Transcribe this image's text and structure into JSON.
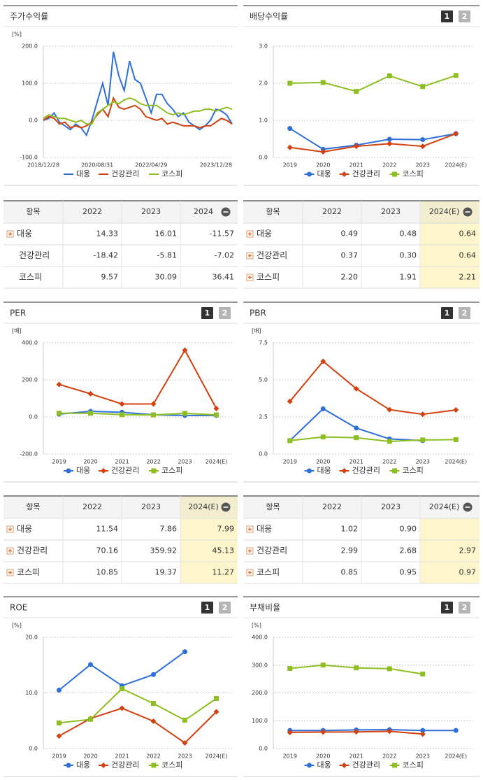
{
  "chart_data": [
    {
      "type": "line",
      "title": "주가수익률",
      "unit": "[%]",
      "categories": [
        "2018/12/28",
        null,
        null,
        null,
        null,
        null,
        null,
        null,
        null,
        null,
        "2020/08/31",
        null,
        null,
        null,
        null,
        null,
        null,
        null,
        null,
        null,
        "2022/04/29",
        null,
        null,
        null,
        null,
        null,
        null,
        null,
        null,
        null,
        null,
        null,
        "2023/12/28",
        null,
        null,
        null
      ],
      "series": [
        {
          "name": "대웅",
          "color": "#2f6fd8",
          "values": [
            0,
            5,
            20,
            -5,
            -15,
            -25,
            -10,
            -20,
            -40,
            0,
            50,
            100,
            40,
            185,
            120,
            80,
            160,
            110,
            100,
            60,
            20,
            70,
            70,
            45,
            30,
            10,
            20,
            -5,
            -15,
            -25,
            -15,
            0,
            30,
            25,
            15,
            -10
          ]
        },
        {
          "name": "건강관리",
          "color": "#d4400e",
          "values": [
            0,
            10,
            5,
            -10,
            -5,
            -20,
            -15,
            -20,
            -15,
            -5,
            15,
            30,
            10,
            60,
            35,
            30,
            35,
            40,
            30,
            10,
            5,
            0,
            5,
            -10,
            -5,
            -10,
            -15,
            -15,
            -15,
            -20,
            -15,
            -15,
            -5,
            5,
            0,
            -10
          ]
        },
        {
          "name": "코스피",
          "color": "#8dbf22",
          "values": [
            5,
            15,
            10,
            5,
            5,
            0,
            -5,
            0,
            -10,
            -10,
            20,
            30,
            40,
            50,
            45,
            55,
            60,
            55,
            45,
            40,
            40,
            40,
            30,
            20,
            15,
            20,
            15,
            20,
            25,
            25,
            30,
            30,
            25,
            30,
            35,
            30
          ]
        }
      ],
      "ylim": [
        -100,
        200
      ],
      "yticks": [
        {
          "value": -100,
          "label": "-100.0"
        },
        {
          "value": 0,
          "label": "0.0"
        },
        {
          "value": 100,
          "label": "100.0"
        },
        {
          "value": 200,
          "label": "200.0"
        }
      ],
      "grid": true
    },
    {
      "type": "line",
      "title": "배당수익률",
      "buttons": [
        "1",
        "2"
      ],
      "categories": [
        "2019",
        "2020",
        "2021",
        "2022",
        "2023",
        "2024(E)"
      ],
      "series": [
        {
          "name": "대웅",
          "color": "#2f6fd8",
          "marker": "circle",
          "values": [
            0.78,
            0.22,
            0.33,
            0.49,
            0.48,
            0.64
          ]
        },
        {
          "name": "건강관리",
          "color": "#d4400e",
          "marker": "diamond",
          "values": [
            0.27,
            0.15,
            0.3,
            0.37,
            0.3,
            0.64
          ]
        },
        {
          "name": "코스피",
          "color": "#8dbf22",
          "marker": "square",
          "values": [
            2.0,
            2.02,
            1.78,
            2.2,
            1.91,
            2.21
          ]
        }
      ],
      "ylim": [
        0,
        3
      ],
      "yticks": [
        {
          "value": 0,
          "label": "0.0"
        },
        {
          "value": 1,
          "label": "1.0"
        },
        {
          "value": 2,
          "label": "2.0"
        },
        {
          "value": 3,
          "label": "3.0"
        }
      ],
      "grid": true
    },
    {
      "type": "line",
      "title": "PER",
      "unit": "[배]",
      "buttons": [
        "1",
        "2"
      ],
      "categories": [
        "2019",
        "2020",
        "2021",
        "2022",
        "2023",
        "2024(E)"
      ],
      "series": [
        {
          "name": "대웅",
          "color": "#2f6fd8",
          "marker": "circle",
          "values": [
            15,
            30,
            25,
            11.54,
            7.86,
            7.99
          ]
        },
        {
          "name": "건강관리",
          "color": "#d4400e",
          "marker": "diamond",
          "values": [
            175,
            125,
            70,
            70.16,
            359.92,
            45.13
          ]
        },
        {
          "name": "코스피",
          "color": "#8dbf22",
          "marker": "square",
          "values": [
            20,
            20,
            12,
            10.85,
            19.37,
            11.27
          ]
        }
      ],
      "ylim": [
        -200,
        400
      ],
      "yticks": [
        {
          "value": -200,
          "label": "-200.0"
        },
        {
          "value": 0,
          "label": "0.0"
        },
        {
          "value": 200,
          "label": "200.0"
        },
        {
          "value": 400,
          "label": "400.0"
        }
      ],
      "grid": true
    },
    {
      "type": "line",
      "title": "PBR",
      "unit": "[배]",
      "buttons": [
        "1",
        "2"
      ],
      "categories": [
        "2019",
        "2020",
        "2021",
        "2022",
        "2023",
        "2024(E)"
      ],
      "series": [
        {
          "name": "대웅",
          "color": "#2f6fd8",
          "marker": "circle",
          "values": [
            0.9,
            3.05,
            1.75,
            1.02,
            0.9,
            null
          ]
        },
        {
          "name": "건강관리",
          "color": "#d4400e",
          "marker": "diamond",
          "values": [
            3.55,
            6.25,
            4.4,
            2.99,
            2.68,
            2.97
          ]
        },
        {
          "name": "코스피",
          "color": "#8dbf22",
          "marker": "square",
          "values": [
            0.9,
            1.15,
            1.1,
            0.85,
            0.95,
            0.97
          ]
        }
      ],
      "ylim": [
        0,
        7.5
      ],
      "yticks": [
        {
          "value": 0,
          "label": "0.0"
        },
        2.5,
        {
          "value": 5,
          "label": "5.0"
        },
        7.5
      ],
      "grid": true
    },
    {
      "type": "line",
      "title": "ROE",
      "unit": "[%]",
      "buttons": [
        "1",
        "2"
      ],
      "categories": [
        "2019",
        "2020",
        "2021",
        "2022",
        "2023",
        "2024(E)"
      ],
      "series": [
        {
          "name": "대웅",
          "color": "#2f6fd8",
          "marker": "circle",
          "values": [
            10.5,
            15.1,
            11.3,
            13.3,
            17.4,
            null
          ]
        },
        {
          "name": "건강관리",
          "color": "#d4400e",
          "marker": "diamond",
          "values": [
            2.25,
            5.4,
            7.25,
            4.9,
            1.0,
            6.6
          ]
        },
        {
          "name": "코스피",
          "color": "#8dbf22",
          "marker": "square",
          "values": [
            4.6,
            5.25,
            10.75,
            8.1,
            5.1,
            9.0
          ]
        }
      ],
      "ylim": [
        0,
        20
      ],
      "yticks": [
        {
          "value": 0,
          "label": "0.0"
        },
        {
          "value": 10,
          "label": "10.0"
        },
        {
          "value": 20,
          "label": "20.0"
        }
      ],
      "grid": true
    },
    {
      "type": "line",
      "title": "부채비율",
      "unit": "[%]",
      "buttons": [
        "1",
        "2"
      ],
      "categories": [
        "2019",
        "2020",
        "2021",
        "2022",
        "2023",
        "2024(E)"
      ],
      "series": [
        {
          "name": "대웅",
          "color": "#2f6fd8",
          "marker": "circle",
          "values": [
            65,
            65,
            67,
            68,
            65,
            65
          ]
        },
        {
          "name": "건강관리",
          "color": "#d4400e",
          "marker": "diamond",
          "values": [
            58,
            59,
            60,
            62,
            52,
            null
          ]
        },
        {
          "name": "코스피",
          "color": "#8dbf22",
          "marker": "square",
          "values": [
            288,
            300,
            290,
            287,
            268,
            null
          ]
        }
      ],
      "ylim": [
        0,
        400
      ],
      "yticks": [
        {
          "value": 0,
          "label": "0.0"
        },
        {
          "value": 100,
          "label": "100.0"
        },
        {
          "value": 200,
          "label": "200.0"
        },
        {
          "value": 300,
          "label": "300.0"
        },
        {
          "value": 400,
          "label": "400.0"
        }
      ],
      "grid": true
    }
  ],
  "tables": [
    {
      "header": [
        "항목",
        "2022",
        "2023",
        "2024"
      ],
      "rows": [
        {
          "name": "대웅",
          "values": [
            "14.33",
            "16.01",
            "-11.57"
          ]
        },
        {
          "name": "건강관리",
          "values": [
            "-18.42",
            "-5.81",
            "-7.02"
          ]
        },
        {
          "name": "코스피",
          "values": [
            "9.57",
            "30.09",
            "36.41"
          ]
        }
      ]
    },
    {
      "header": [
        "항목",
        "2022",
        "2023",
        "2024(E)"
      ],
      "rows": [
        {
          "name": "대웅",
          "values": [
            "0.49",
            "0.48",
            "0.64"
          ]
        },
        {
          "name": "건강관리",
          "values": [
            "0.37",
            "0.30",
            "0.64"
          ]
        },
        {
          "name": "코스피",
          "values": [
            "2.20",
            "1.91",
            "2.21"
          ]
        }
      ]
    },
    {
      "header": [
        "항목",
        "2022",
        "2023",
        "2024(E)"
      ],
      "rows": [
        {
          "name": "대웅",
          "values": [
            "11.54",
            "7.86",
            "7.99"
          ]
        },
        {
          "name": "건강관리",
          "values": [
            "70.16",
            "359.92",
            "45.13"
          ]
        },
        {
          "name": "코스피",
          "values": [
            "10.85",
            "19.37",
            "11.27"
          ]
        }
      ]
    },
    {
      "header": [
        "항목",
        "2022",
        "2023",
        "2024(E)"
      ],
      "rows": [
        {
          "name": "대웅",
          "values": [
            "1.02",
            "0.90",
            null
          ]
        },
        {
          "name": "건강관리",
          "values": [
            "2.99",
            "2.68",
            "2.97"
          ]
        },
        {
          "name": "코스피",
          "values": [
            "0.85",
            "0.95",
            "0.97"
          ]
        }
      ]
    }
  ]
}
